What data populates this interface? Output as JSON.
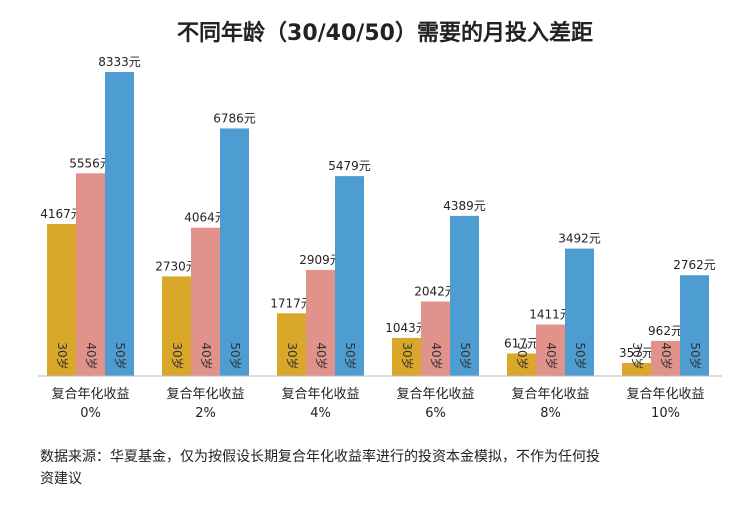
{
  "chart_data": {
    "type": "bar",
    "title": "不同年龄（30/40/50）需要的月投入差距",
    "categories": [
      {
        "line1": "复合年化收益",
        "line2": "0%"
      },
      {
        "line1": "复合年化收益",
        "line2": "2%"
      },
      {
        "line1": "复合年化收益",
        "line2": "4%"
      },
      {
        "line1": "复合年化收益",
        "line2": "6%"
      },
      {
        "line1": "复合年化收益",
        "line2": "8%"
      },
      {
        "line1": "复合年化收益",
        "line2": "10%"
      }
    ],
    "series": [
      {
        "name": "30岁",
        "color": "#d9a72a",
        "values": [
          4167,
          2730,
          1717,
          1043,
          617,
          357
        ]
      },
      {
        "name": "40岁",
        "color": "#e1928a",
        "values": [
          5556,
          4064,
          2909,
          2042,
          1411,
          962
        ]
      },
      {
        "name": "50岁",
        "color": "#4d9cd2",
        "values": [
          8333,
          6786,
          5479,
          4389,
          3492,
          2762
        ]
      }
    ],
    "value_unit": "元",
    "ylim": [
      0,
      8333
    ],
    "xlabel": "",
    "ylabel": "",
    "legend": "none",
    "grid": false
  },
  "footnote": {
    "line1": "数据来源：华夏基金，仅为按假设长期复合年化收益率进行的投资本金模拟，不作为任何投",
    "line2": "资建议"
  }
}
